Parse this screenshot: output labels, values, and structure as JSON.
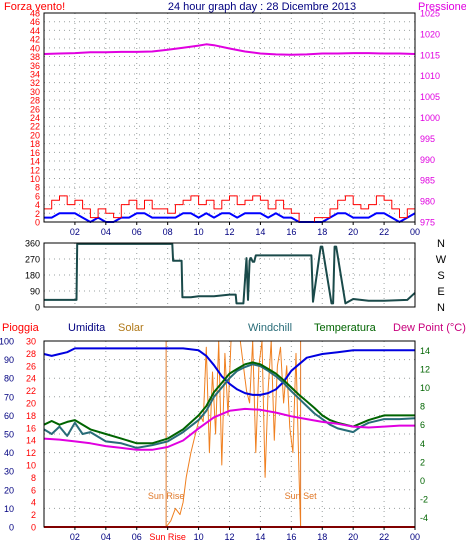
{
  "colors": {
    "background": "#ffffff",
    "frame": "#000000",
    "grid": "#9aa0a0",
    "red": "#ff0000",
    "blue": "#0000ff",
    "magenta": "#e000e0",
    "navy": "#000080",
    "gold": "#b07818",
    "teal": "#286c78",
    "green": "#006400",
    "dew_label": "#c8007c",
    "darkslate": "#1a4a4a",
    "sun_orange": "#e07828",
    "solar_line": "#f08020",
    "windchill_line": "#286c78",
    "humidity_line": "#0000e0"
  },
  "chart_data": [
    {
      "type": "line",
      "panel": "wind_pressure",
      "title": "24 hour graph day : 28 Dicembre 2013",
      "left_axis_title": "Forza vento!",
      "right_axis_title": "Pressione",
      "ylim_left": [
        0,
        48
      ],
      "yticks_left": [
        "0",
        "2",
        "4",
        "6",
        "8",
        "10",
        "12",
        "14",
        "16",
        "18",
        "20",
        "22",
        "24",
        "26",
        "28",
        "30",
        "32",
        "34",
        "36",
        "38",
        "40",
        "42",
        "44",
        "46",
        "48"
      ],
      "ylim_right": [
        975,
        1025
      ],
      "yticks_right": [
        "975",
        "980",
        "985",
        "990",
        "995",
        "1000",
        "1005",
        "1010",
        "1015",
        "1020",
        "1025"
      ],
      "x_hours_range": [
        0,
        24
      ],
      "xticks": [
        "02",
        "04",
        "06",
        "08",
        "10",
        "12",
        "14",
        "16",
        "18",
        "20",
        "22",
        "00"
      ],
      "xtick_hours": [
        2,
        4,
        6,
        8,
        10,
        12,
        14,
        16,
        18,
        20,
        22,
        24
      ],
      "series": [
        {
          "role": "pressure",
          "color_key": "magenta",
          "axis": "right",
          "x": [
            0,
            1,
            2,
            3,
            4,
            5,
            6,
            7,
            8,
            9,
            10,
            10.5,
            11,
            12,
            13,
            14,
            15,
            16,
            17,
            18,
            19,
            20,
            21,
            22,
            23,
            24
          ],
          "y": [
            1015.2,
            1015.3,
            1015.4,
            1015.6,
            1015.6,
            1015.7,
            1015.7,
            1015.8,
            1016.2,
            1016.7,
            1017.2,
            1017.5,
            1017.3,
            1016.5,
            1015.8,
            1015.3,
            1015.1,
            1015.0,
            1015.1,
            1015.3,
            1015.3,
            1015.4,
            1015.4,
            1015.3,
            1015.3,
            1015.2
          ]
        },
        {
          "role": "average wind",
          "color_key": "blue",
          "axis": "left",
          "x": [
            0,
            0.5,
            1,
            1.5,
            2,
            2.5,
            3,
            3.5,
            4,
            4.5,
            5,
            5.5,
            6,
            6.5,
            7,
            7.5,
            8,
            8.5,
            9,
            9.5,
            10,
            10.5,
            11,
            11.5,
            12,
            12.5,
            13,
            13.5,
            14,
            14.5,
            15,
            15.5,
            16,
            16.5,
            17,
            17.5,
            18,
            18.5,
            19,
            19.5,
            20,
            20.5,
            21,
            21.5,
            22,
            22.5,
            23,
            23.5,
            24
          ],
          "y": [
            1,
            1,
            2,
            2,
            2,
            1,
            0,
            1,
            0,
            0,
            1,
            1,
            2,
            2,
            1,
            1,
            1,
            1,
            2,
            2,
            1,
            2,
            1,
            2,
            2,
            1,
            2,
            2,
            2,
            1,
            2,
            1,
            1,
            0,
            0,
            0,
            0,
            1,
            2,
            2,
            1,
            1,
            1,
            2,
            2,
            1,
            0,
            1,
            2
          ]
        },
        {
          "role": "wind gust",
          "color_key": "red",
          "axis": "left",
          "x": [
            0,
            0.5,
            1,
            1.5,
            2,
            2.5,
            3,
            3.5,
            4,
            4.5,
            5,
            5.5,
            6,
            6.5,
            7,
            7.5,
            8,
            8.5,
            9,
            9.5,
            10,
            10.5,
            11,
            11.5,
            12,
            12.5,
            13,
            13.5,
            14,
            14.5,
            15,
            15.5,
            16,
            16.5,
            17,
            17.5,
            18,
            18.5,
            19,
            19.5,
            20,
            20.5,
            21,
            21.5,
            22,
            22.5,
            23,
            23.5,
            24
          ],
          "y": [
            3,
            5,
            6,
            4,
            5,
            3,
            1,
            3,
            2,
            1,
            4,
            5,
            3,
            5,
            3,
            3,
            2,
            4,
            5,
            6,
            4,
            5,
            3,
            5,
            6,
            4,
            5,
            6,
            5,
            3,
            5,
            3,
            2,
            0,
            0,
            1,
            1,
            3,
            5,
            6,
            4,
            3,
            4,
            6,
            5,
            3,
            1,
            3,
            5
          ]
        }
      ]
    },
    {
      "type": "line",
      "panel": "wind_direction",
      "ylim": [
        0,
        360
      ],
      "yticks": [
        "0",
        "90",
        "180",
        "270",
        "360"
      ],
      "compass_labels": [
        "N",
        "W",
        "S",
        "E",
        "N"
      ],
      "x_hours_range": [
        0,
        24
      ],
      "series": [
        {
          "role": "wind direction",
          "color_key": "darkslate",
          "x": [
            0,
            2.1,
            2.15,
            8.3,
            8.35,
            8.9,
            8.95,
            9.5,
            10,
            11,
            12,
            12.4,
            12.45,
            12.9,
            13.1,
            13.2,
            13.3,
            13.35,
            13.4,
            13.5,
            13.6,
            13.7,
            16.5,
            16.6,
            17,
            17.3,
            17.4,
            17.9,
            18.0,
            18.6,
            18.7,
            18.8,
            18.9,
            19.5,
            20.0,
            21,
            22,
            23.5,
            24
          ],
          "y": [
            40,
            40,
            355,
            355,
            260,
            260,
            55,
            55,
            60,
            60,
            70,
            70,
            20,
            20,
            275,
            40,
            260,
            275,
            275,
            255,
            255,
            290,
            290,
            290,
            290,
            290,
            30,
            340,
            340,
            20,
            20,
            340,
            340,
            20,
            45,
            35,
            35,
            40,
            80
          ]
        }
      ]
    },
    {
      "type": "line",
      "panel": "temperature_humidity",
      "header_labels": {
        "rain": "Pioggia",
        "humidity": "Umidita",
        "solar": "Solar",
        "windchill": "Windchill",
        "temperature": "Temperatura",
        "dew_point": "Dew Point (°C)"
      },
      "ylim_humidity": [
        0,
        100
      ],
      "yticks_humidity": [
        "0",
        "10",
        "20",
        "30",
        "40",
        "50",
        "60",
        "70",
        "80",
        "90",
        "100"
      ],
      "ylim_rain": [
        0,
        30
      ],
      "yticks_rain": [
        "0",
        "2",
        "4",
        "6",
        "8",
        "10",
        "12",
        "14",
        "16",
        "18",
        "20",
        "22",
        "24",
        "26",
        "28",
        "30"
      ],
      "ylim_temp": [
        -5,
        15
      ],
      "yticks_temp": [
        "-4",
        "-2",
        "0",
        "2",
        "4",
        "6",
        "8",
        "10",
        "12",
        "14"
      ],
      "x_hours_range": [
        0,
        24
      ],
      "xticks": [
        "02",
        "04",
        "06",
        "Sun Rise",
        "10",
        "12",
        "14",
        "16",
        "18",
        "20",
        "22",
        "00"
      ],
      "xtick_hours": [
        2,
        4,
        6,
        8,
        10,
        12,
        14,
        16,
        18,
        20,
        22,
        24
      ],
      "sun_rise": {
        "label": "Sun Rise",
        "hour": 7.9
      },
      "sun_set": {
        "label": "Sun Set",
        "hour": 16.6
      },
      "series": [
        {
          "role": "humidity",
          "color_key": "humidity_line",
          "axis": "humidity",
          "x": [
            0,
            0.5,
            1,
            1.5,
            2,
            3,
            4,
            5,
            6,
            7,
            8,
            9,
            10,
            10.5,
            11,
            11.5,
            12,
            12.5,
            13,
            13.5,
            14,
            14.5,
            15,
            15.5,
            16,
            17,
            18,
            19,
            20,
            21,
            22,
            23,
            24
          ],
          "y": [
            93,
            92,
            93,
            94,
            96,
            96,
            96,
            96,
            96,
            96,
            96,
            96,
            95,
            92,
            87,
            81,
            77,
            74,
            72,
            71,
            71,
            72,
            74,
            78,
            84,
            91,
            93,
            94,
            95,
            95,
            95,
            95,
            95
          ]
        },
        {
          "role": "temperature",
          "color_key": "green",
          "axis": "temp",
          "x": [
            0,
            0.5,
            1,
            1.5,
            2,
            3,
            4,
            5,
            6,
            7,
            8,
            9,
            10,
            10.5,
            11,
            11.5,
            12,
            12.5,
            13,
            13.5,
            14,
            14.5,
            15,
            15.5,
            16,
            16.5,
            17,
            17.5,
            18,
            18.5,
            19,
            20,
            21,
            22,
            23,
            24
          ],
          "y": [
            6.0,
            6.4,
            6.0,
            6.3,
            6.5,
            5.5,
            5.0,
            4.5,
            4.0,
            4.0,
            4.5,
            5.5,
            7.0,
            8.0,
            9.5,
            10.5,
            11.5,
            12.0,
            12.5,
            12.7,
            12.5,
            12.0,
            11.5,
            10.8,
            10.0,
            9.2,
            8.5,
            7.8,
            7.0,
            6.5,
            6.2,
            5.8,
            6.5,
            7.0,
            7.0,
            7.0
          ]
        },
        {
          "role": "windchill",
          "color_key": "windchill_line",
          "axis": "temp",
          "x": [
            0,
            0.5,
            1,
            1.5,
            2,
            2.5,
            3,
            4,
            5,
            6,
            7,
            8,
            9,
            10,
            10.5,
            11,
            11.5,
            12,
            12.5,
            13,
            13.5,
            14,
            14.5,
            15,
            15.5,
            16,
            16.5,
            17,
            17.5,
            18,
            18.5,
            19,
            20,
            20.5,
            21,
            22,
            23,
            24
          ],
          "y": [
            5.5,
            5.0,
            5.8,
            4.8,
            6.2,
            5.0,
            5.2,
            4.2,
            4.0,
            3.5,
            3.8,
            4.2,
            5.2,
            6.5,
            7.5,
            9.0,
            10.0,
            11.0,
            11.8,
            12.2,
            12.5,
            12.3,
            11.8,
            11.2,
            10.5,
            9.6,
            8.8,
            8.0,
            7.2,
            6.6,
            6.0,
            5.6,
            5.2,
            5.8,
            6.2,
            6.6,
            6.6,
            6.7
          ]
        },
        {
          "role": "dew point",
          "color_key": "magenta",
          "axis": "temp",
          "x": [
            0,
            1,
            2,
            3,
            4,
            5,
            6,
            7,
            8,
            9,
            10,
            11,
            12,
            13,
            14,
            15,
            16,
            17,
            18,
            19,
            20,
            21,
            22,
            23,
            24
          ],
          "y": [
            4.5,
            4.4,
            4.2,
            4.0,
            3.7,
            3.5,
            3.3,
            3.3,
            3.6,
            4.3,
            5.6,
            6.8,
            7.5,
            7.7,
            7.6,
            7.3,
            6.9,
            6.6,
            6.3,
            6.1,
            5.8,
            5.7,
            5.8,
            5.9,
            5.9
          ]
        },
        {
          "role": "solar",
          "color_key": "solar_line",
          "axis": "rain",
          "x": [
            7.9,
            8.2,
            8.5,
            8.8,
            9.0,
            9.2,
            9.5,
            9.7,
            9.9,
            10.1,
            10.3,
            10.5,
            10.7,
            10.9,
            11.1,
            11.3,
            11.5,
            11.7,
            11.9,
            12.1,
            12.3,
            12.5,
            12.7,
            12.9,
            13.1,
            13.3,
            13.5,
            13.7,
            13.9,
            14.1,
            14.3,
            14.5,
            14.7,
            14.9,
            15.1,
            15.3,
            15.5,
            15.7,
            15.9,
            16.1,
            16.3,
            16.5,
            16.6
          ],
          "y": [
            0,
            1,
            3,
            2,
            4,
            8,
            12,
            14,
            16,
            18,
            17,
            29,
            12,
            25,
            15,
            30,
            10,
            28,
            18,
            30,
            30,
            30,
            30,
            26,
            22,
            20,
            30,
            12,
            26,
            30,
            8,
            22,
            30,
            14,
            26,
            29,
            20,
            26,
            16,
            12,
            28,
            8,
            0
          ]
        },
        {
          "role": "rain",
          "color_key": "red",
          "axis": "rain",
          "x": [
            0,
            24
          ],
          "y": [
            0,
            0
          ]
        }
      ]
    }
  ]
}
